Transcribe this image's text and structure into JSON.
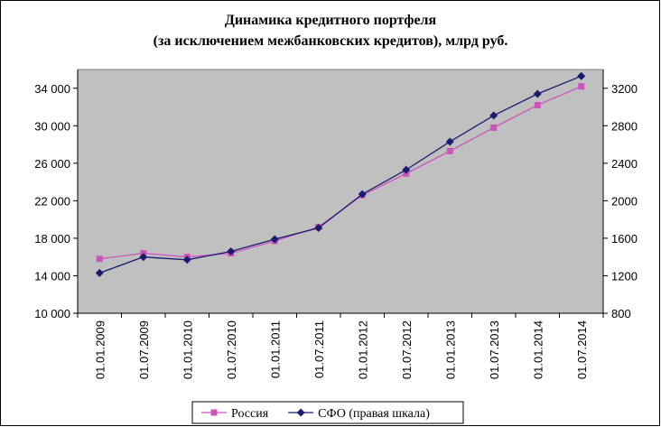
{
  "chart_data": {
    "type": "line",
    "title": [
      "Динамика кредитного портфеля",
      "(за исключением межбанковских кредитов), млрд руб."
    ],
    "categories": [
      "01.01.2009",
      "01.07.2009",
      "01.01.2010",
      "01.07.2010",
      "01.01.2011",
      "01.07.2011",
      "01.01.2012",
      "01.07.2012",
      "01.01.2013",
      "01.07.2013",
      "01.01.2014",
      "01.07.2014"
    ],
    "series": [
      {
        "name": "Россия",
        "color": "#cc55bb",
        "marker": "square",
        "values": [
          15800,
          16400,
          16000,
          16400,
          17700,
          19200,
          22600,
          24900,
          27300,
          29800,
          32200,
          34200
        ]
      },
      {
        "name": "СФО (правая шкала)",
        "color": "#1a1a6e",
        "marker": "diamond",
        "axis": "y2",
        "values": [
          1230,
          1400,
          1370,
          1460,
          1590,
          1710,
          2070,
          2330,
          2630,
          2910,
          3140,
          3330
        ]
      }
    ],
    "ylim": [
      10000,
      36000
    ],
    "yticks": [
      {
        "value": 10000,
        "label": "10 000"
      },
      {
        "value": 14000,
        "label": "14 000"
      },
      {
        "value": 18000,
        "label": "18 000"
      },
      {
        "value": 22000,
        "label": "22 000"
      },
      {
        "value": 26000,
        "label": "26 000"
      },
      {
        "value": 30000,
        "label": "30 000"
      },
      {
        "value": 34000,
        "label": "34 000"
      }
    ],
    "y2lim": [
      800,
      3400
    ],
    "y2ticks": [
      800,
      1200,
      1600,
      2000,
      2400,
      2800,
      3200
    ],
    "plot_background": "#c0c0c0",
    "legend": "bottom"
  }
}
